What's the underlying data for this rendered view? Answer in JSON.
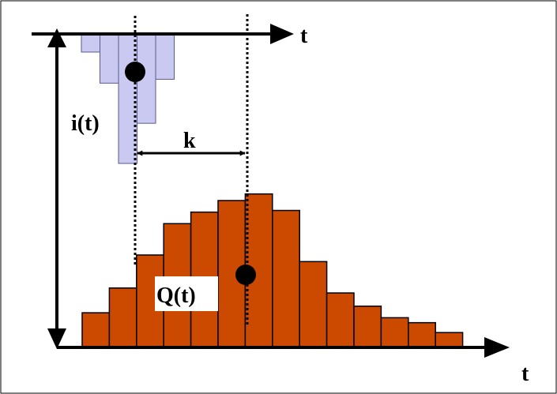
{
  "colors": {
    "inflow_fill": "#c9c9f2",
    "inflow_stroke": "#5a5a8a",
    "outflow_fill": "#cc4a00",
    "outflow_stroke": "#000000",
    "axis": "#000000",
    "marker": "#000000"
  },
  "labels": {
    "inflow_axis_t": "t",
    "outflow_axis_t": "t",
    "inflow": "i(t)",
    "outflow": "Q(t)",
    "lag": "k"
  },
  "inflow_hyetograph": {
    "relative_depths": [
      0.14,
      0.38,
      1.0,
      0.69,
      0.35
    ],
    "centroid_bar_index": 2
  },
  "outflow_hydrograph": {
    "relative_heights": [
      0.21,
      0.36,
      0.56,
      0.75,
      0.82,
      0.89,
      0.93,
      0.83,
      0.52,
      0.33,
      0.25,
      0.18,
      0.15,
      0.09
    ],
    "centroid_bar_index": 6
  }
}
